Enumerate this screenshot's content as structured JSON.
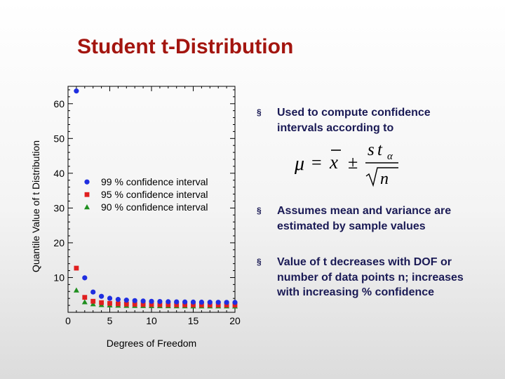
{
  "slide": {
    "title": "Student t-Distribution"
  },
  "bullets": [
    {
      "marker": "§",
      "text": "Used to compute confidence intervals according to"
    },
    {
      "marker": "§",
      "text": "Assumes mean and variance are estimated by sample values"
    },
    {
      "marker": "§",
      "text": "Value of t decreases with DOF or number of data points n; increases with increasing % confidence"
    }
  ],
  "formula": {
    "mu": "μ",
    "equals": "=",
    "xbar": "x",
    "pm": "±",
    "s": "s",
    "t": "t",
    "alpha": "α",
    "n": "n"
  },
  "chart_data": {
    "type": "scatter",
    "xlabel": "Degrees of Freedom",
    "ylabel": "Quantile Value of t Distribution",
    "xlim": [
      0,
      20
    ],
    "ylim": [
      0,
      65
    ],
    "xticks": [
      0,
      5,
      10,
      15,
      20
    ],
    "yticks": [
      10,
      20,
      30,
      40,
      50,
      60
    ],
    "grid": false,
    "legend_position": "center",
    "series": [
      {
        "name": "99 % confidence interval",
        "color": "#1f2ee0",
        "marker": "circle",
        "x": [
          1,
          2,
          3,
          4,
          5,
          6,
          7,
          8,
          9,
          10,
          11,
          12,
          13,
          14,
          15,
          16,
          17,
          18,
          19,
          20
        ],
        "y": [
          63.66,
          9.92,
          5.84,
          4.6,
          4.03,
          3.71,
          3.5,
          3.36,
          3.25,
          3.17,
          3.11,
          3.05,
          3.01,
          2.98,
          2.95,
          2.92,
          2.9,
          2.88,
          2.86,
          2.85
        ]
      },
      {
        "name": "95 % confidence interval",
        "color": "#e01f1f",
        "marker": "square",
        "x": [
          1,
          2,
          3,
          4,
          5,
          6,
          7,
          8,
          9,
          10,
          11,
          12,
          13,
          14,
          15,
          16,
          17,
          18,
          19,
          20
        ],
        "y": [
          12.71,
          4.3,
          3.18,
          2.78,
          2.57,
          2.45,
          2.36,
          2.31,
          2.26,
          2.23,
          2.2,
          2.18,
          2.16,
          2.14,
          2.13,
          2.12,
          2.11,
          2.1,
          2.09,
          2.09
        ]
      },
      {
        "name": "90 % confidence interval",
        "color": "#1f8f1f",
        "marker": "triangle",
        "x": [
          1,
          2,
          3,
          4,
          5,
          6,
          7,
          8,
          9,
          10,
          11,
          12,
          13,
          14,
          15,
          16,
          17,
          18,
          19,
          20
        ],
        "y": [
          6.31,
          2.92,
          2.35,
          2.13,
          2.02,
          1.94,
          1.89,
          1.86,
          1.83,
          1.81,
          1.8,
          1.78,
          1.77,
          1.76,
          1.75,
          1.75,
          1.74,
          1.73,
          1.73,
          1.72
        ]
      }
    ]
  }
}
